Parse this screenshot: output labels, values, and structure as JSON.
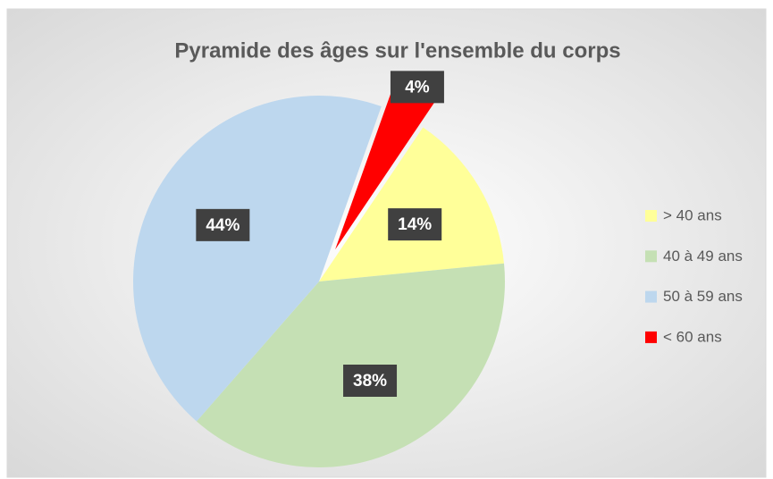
{
  "chart_data": {
    "type": "pie",
    "title": "Pyramide des âges sur l'ensemble du corps",
    "categories": [
      "> 40 ans",
      "40 à 49 ans",
      "50 à 59 ans",
      "< 60 ans"
    ],
    "values": [
      14,
      38,
      44,
      4
    ],
    "value_labels": [
      "14%",
      "38%",
      "44%",
      "4%"
    ],
    "colors": [
      "#ffff99",
      "#c5e0b4",
      "#bdd7ee",
      "#ff0000"
    ],
    "legend": "right"
  }
}
